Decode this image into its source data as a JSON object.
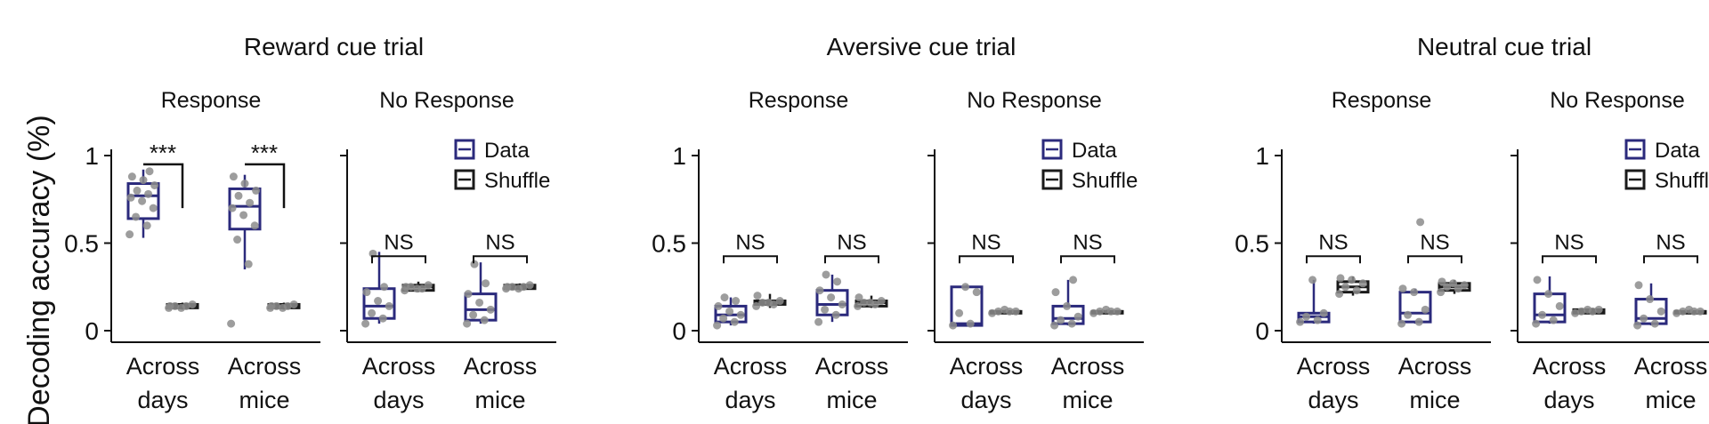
{
  "figure": {
    "ylabel": "Decoding accuracy (%)",
    "colors": {
      "data": "#2b2a7c",
      "shuffle": "#1a1a1a",
      "points": "#8c8c8c"
    }
  },
  "chart_data": [
    {
      "type": "box",
      "title": "Reward cue trial",
      "panels": [
        {
          "subtitle": "Response",
          "categories": [
            "Across days",
            "Across mice"
          ],
          "yticks": [
            "1",
            "0.5",
            "0"
          ],
          "ylim": [
            0,
            1
          ],
          "significance": [
            "***",
            "***"
          ],
          "series": [
            {
              "name": "Data",
              "boxes": [
                {
                  "min": 0.53,
                  "q1": 0.64,
                  "median": 0.77,
                  "q3": 0.84,
                  "max": 0.92,
                  "points": [
                    0.55,
                    0.6,
                    0.65,
                    0.7,
                    0.74,
                    0.76,
                    0.78,
                    0.8,
                    0.83,
                    0.86,
                    0.88,
                    0.91
                  ]
                },
                {
                  "min": 0.35,
                  "q1": 0.58,
                  "median": 0.71,
                  "q3": 0.81,
                  "max": 0.89,
                  "points": [
                    0.04,
                    0.38,
                    0.52,
                    0.6,
                    0.66,
                    0.7,
                    0.73,
                    0.77,
                    0.8,
                    0.84,
                    0.88
                  ]
                }
              ]
            },
            {
              "name": "Shuffle",
              "boxes": [
                {
                  "min": 0.12,
                  "q1": 0.13,
                  "median": 0.14,
                  "q3": 0.15,
                  "max": 0.16,
                  "points": [
                    0.13,
                    0.14,
                    0.14,
                    0.15,
                    0.13,
                    0.14
                  ]
                },
                {
                  "min": 0.12,
                  "q1": 0.13,
                  "median": 0.14,
                  "q3": 0.15,
                  "max": 0.16,
                  "points": [
                    0.13,
                    0.14,
                    0.14,
                    0.15,
                    0.13,
                    0.14
                  ]
                }
              ]
            }
          ]
        },
        {
          "subtitle": "No Response",
          "categories": [
            "Across days",
            "Across mice"
          ],
          "yticks": [],
          "ylim": [
            0,
            1
          ],
          "significance": [
            "NS",
            "NS"
          ],
          "series": [
            {
              "name": "Data",
              "boxes": [
                {
                  "min": 0.04,
                  "q1": 0.07,
                  "median": 0.14,
                  "q3": 0.24,
                  "max": 0.45,
                  "points": [
                    0.04,
                    0.07,
                    0.1,
                    0.14,
                    0.17,
                    0.22,
                    0.25,
                    0.44
                  ]
                },
                {
                  "min": 0.04,
                  "q1": 0.06,
                  "median": 0.12,
                  "q3": 0.21,
                  "max": 0.39,
                  "points": [
                    0.04,
                    0.06,
                    0.09,
                    0.12,
                    0.16,
                    0.21,
                    0.27,
                    0.38
                  ]
                }
              ]
            },
            {
              "name": "Shuffle",
              "boxes": [
                {
                  "min": 0.22,
                  "q1": 0.23,
                  "median": 0.25,
                  "q3": 0.26,
                  "max": 0.28,
                  "points": [
                    0.23,
                    0.24,
                    0.25,
                    0.26,
                    0.24,
                    0.25
                  ]
                },
                {
                  "min": 0.23,
                  "q1": 0.24,
                  "median": 0.25,
                  "q3": 0.26,
                  "max": 0.27,
                  "points": [
                    0.24,
                    0.25,
                    0.25,
                    0.26,
                    0.24,
                    0.25
                  ]
                }
              ]
            }
          ]
        }
      ]
    },
    {
      "type": "box",
      "title": "Aversive cue trial",
      "panels": [
        {
          "subtitle": "Response",
          "categories": [
            "Across days",
            "Across mice"
          ],
          "yticks": [
            "1",
            "0.5",
            "0"
          ],
          "ylim": [
            0,
            1
          ],
          "significance": [
            "NS",
            "NS"
          ],
          "series": [
            {
              "name": "Data",
              "boxes": [
                {
                  "min": 0.03,
                  "q1": 0.05,
                  "median": 0.09,
                  "q3": 0.14,
                  "max": 0.19,
                  "points": [
                    0.03,
                    0.05,
                    0.07,
                    0.09,
                    0.11,
                    0.14,
                    0.17,
                    0.19
                  ]
                },
                {
                  "min": 0.05,
                  "q1": 0.09,
                  "median": 0.15,
                  "q3": 0.23,
                  "max": 0.32,
                  "points": [
                    0.05,
                    0.09,
                    0.12,
                    0.15,
                    0.19,
                    0.23,
                    0.28,
                    0.32
                  ]
                }
              ]
            },
            {
              "name": "Shuffle",
              "boxes": [
                {
                  "min": 0.13,
                  "q1": 0.15,
                  "median": 0.16,
                  "q3": 0.17,
                  "max": 0.21,
                  "points": [
                    0.14,
                    0.15,
                    0.16,
                    0.17,
                    0.16,
                    0.2
                  ]
                },
                {
                  "min": 0.13,
                  "q1": 0.14,
                  "median": 0.16,
                  "q3": 0.17,
                  "max": 0.2,
                  "points": [
                    0.14,
                    0.15,
                    0.16,
                    0.17,
                    0.16,
                    0.19
                  ]
                }
              ]
            }
          ]
        },
        {
          "subtitle": "No Response",
          "categories": [
            "Across days",
            "Across mice"
          ],
          "yticks": [],
          "ylim": [
            0,
            1
          ],
          "significance": [
            "NS",
            "NS"
          ],
          "series": [
            {
              "name": "Data",
              "boxes": [
                {
                  "min": 0.03,
                  "q1": 0.03,
                  "median": 0.04,
                  "q3": 0.25,
                  "max": 0.26,
                  "points": [
                    0.03,
                    0.04,
                    0.1,
                    0.22,
                    0.25
                  ]
                },
                {
                  "min": 0.03,
                  "q1": 0.04,
                  "median": 0.07,
                  "q3": 0.14,
                  "max": 0.29,
                  "points": [
                    0.03,
                    0.04,
                    0.06,
                    0.08,
                    0.14,
                    0.22,
                    0.29
                  ]
                }
              ]
            },
            {
              "name": "Shuffle",
              "boxes": [
                {
                  "min": 0.1,
                  "q1": 0.1,
                  "median": 0.11,
                  "q3": 0.11,
                  "max": 0.12,
                  "points": [
                    0.1,
                    0.11,
                    0.11,
                    0.11,
                    0.12
                  ]
                },
                {
                  "min": 0.1,
                  "q1": 0.1,
                  "median": 0.11,
                  "q3": 0.11,
                  "max": 0.12,
                  "points": [
                    0.1,
                    0.11,
                    0.11,
                    0.11,
                    0.12
                  ]
                }
              ]
            }
          ]
        }
      ]
    },
    {
      "type": "box",
      "title": "Neutral cue trial",
      "panels": [
        {
          "subtitle": "Response",
          "categories": [
            "Across days",
            "Across mice"
          ],
          "yticks": [
            "1",
            "0.5",
            "0"
          ],
          "ylim": [
            0,
            1
          ],
          "significance": [
            "NS",
            "NS"
          ],
          "series": [
            {
              "name": "Data",
              "boxes": [
                {
                  "min": 0.04,
                  "q1": 0.05,
                  "median": 0.08,
                  "q3": 0.1,
                  "max": 0.29,
                  "points": [
                    0.05,
                    0.06,
                    0.08,
                    0.1,
                    0.29
                  ]
                },
                {
                  "min": 0.04,
                  "q1": 0.05,
                  "median": 0.1,
                  "q3": 0.22,
                  "max": 0.24,
                  "points": [
                    0.04,
                    0.05,
                    0.09,
                    0.12,
                    0.22,
                    0.24,
                    0.62
                  ]
                }
              ]
            },
            {
              "name": "Shuffle",
              "boxes": [
                {
                  "min": 0.2,
                  "q1": 0.22,
                  "median": 0.25,
                  "q3": 0.28,
                  "max": 0.31,
                  "points": [
                    0.21,
                    0.23,
                    0.25,
                    0.27,
                    0.29,
                    0.3
                  ]
                },
                {
                  "min": 0.21,
                  "q1": 0.23,
                  "median": 0.25,
                  "q3": 0.27,
                  "max": 0.29,
                  "points": [
                    0.22,
                    0.24,
                    0.25,
                    0.26,
                    0.27,
                    0.28
                  ]
                }
              ]
            }
          ]
        },
        {
          "subtitle": "No Response",
          "categories": [
            "Across days",
            "Across mice"
          ],
          "yticks": [],
          "ylim": [
            0,
            1
          ],
          "significance": [
            "NS",
            "NS"
          ],
          "series": [
            {
              "name": "Data",
              "boxes": [
                {
                  "min": 0.04,
                  "q1": 0.05,
                  "median": 0.09,
                  "q3": 0.21,
                  "max": 0.31,
                  "points": [
                    0.04,
                    0.06,
                    0.09,
                    0.14,
                    0.21,
                    0.29
                  ]
                },
                {
                  "min": 0.03,
                  "q1": 0.04,
                  "median": 0.07,
                  "q3": 0.18,
                  "max": 0.27,
                  "points": [
                    0.03,
                    0.04,
                    0.07,
                    0.11,
                    0.18,
                    0.26
                  ]
                }
              ]
            },
            {
              "name": "Shuffle",
              "boxes": [
                {
                  "min": 0.1,
                  "q1": 0.1,
                  "median": 0.11,
                  "q3": 0.12,
                  "max": 0.12,
                  "points": [
                    0.1,
                    0.11,
                    0.11,
                    0.12,
                    0.12
                  ]
                },
                {
                  "min": 0.1,
                  "q1": 0.1,
                  "median": 0.11,
                  "q3": 0.11,
                  "max": 0.12,
                  "points": [
                    0.1,
                    0.11,
                    0.11,
                    0.11,
                    0.12
                  ]
                }
              ]
            }
          ]
        }
      ]
    }
  ]
}
